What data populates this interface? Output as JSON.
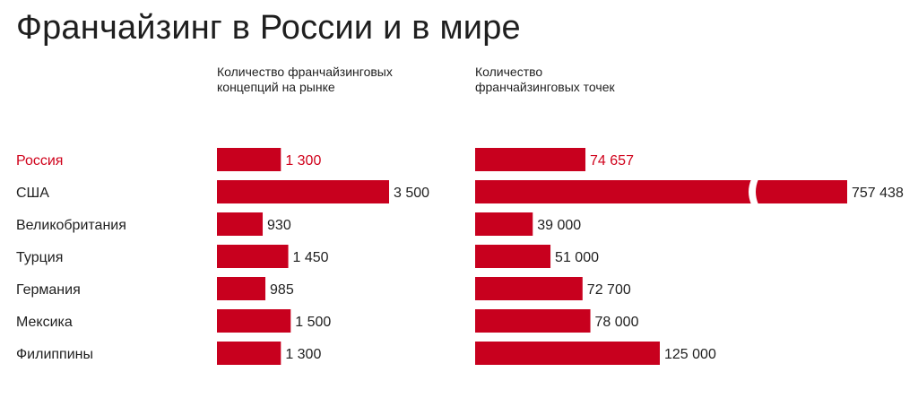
{
  "title": "Франчайзинг в России и в мире",
  "colors": {
    "bar": "#c8001e",
    "highlight": "#d0021b",
    "text": "#1f1f1f"
  },
  "chart_data": [
    {
      "type": "bar",
      "orientation": "horizontal",
      "title_lines": [
        "Количество франчайзинговых",
        "концепций на рынке"
      ],
      "categories": [
        "Россия",
        "США",
        "Великобритания",
        "Турция",
        "Германия",
        "Мексика",
        "Филиппины"
      ],
      "values": [
        1300,
        3500,
        930,
        1450,
        985,
        1500,
        1300
      ],
      "value_labels": [
        "1 300",
        "3 500",
        "930",
        "1 450",
        "985",
        "1 500",
        "1 300"
      ],
      "highlight_category": "Россия"
    },
    {
      "type": "bar",
      "orientation": "horizontal",
      "title_lines": [
        "Количество",
        "франчайзинговых точек"
      ],
      "categories": [
        "Россия",
        "США",
        "Великобритания",
        "Турция",
        "Германия",
        "Мексика",
        "Филиппины"
      ],
      "values": [
        74657,
        757438,
        39000,
        51000,
        72700,
        78000,
        125000
      ],
      "value_labels": [
        "74 657",
        "757 438",
        "39 000",
        "51 000",
        "72 700",
        "78 000",
        "125 000"
      ],
      "highlight_category": "Россия",
      "axis_break_category": "США"
    }
  ]
}
